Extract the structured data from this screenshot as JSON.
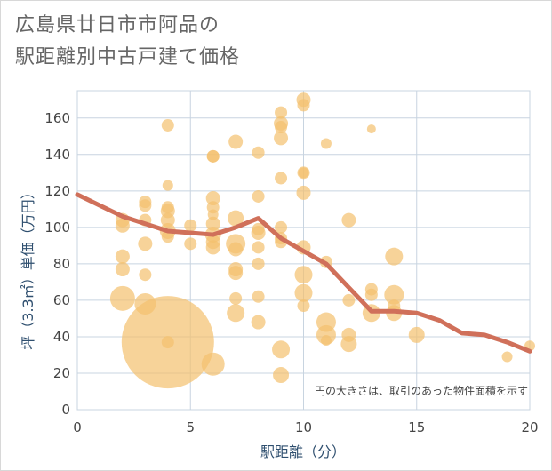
{
  "title_line1": "広島県廿日市市阿品の",
  "title_line2": "駅距離別中古戸建て価格",
  "chart_data": {
    "type": "scatter",
    "title": "広島県廿日市市阿品の駅距離別中古戸建て価格",
    "xlabel": "駅距離（分）",
    "ylabel": "坪（3.3㎡）単価（万円）",
    "xlim": [
      0,
      20
    ],
    "ylim": [
      0,
      175
    ],
    "xticks": [
      "0",
      "5",
      "10",
      "15",
      "20"
    ],
    "yticks": [
      "0",
      "20",
      "40",
      "60",
      "80",
      "100",
      "120",
      "140",
      "160"
    ],
    "note": "円の大きさは、取引のあった物件面積を示す",
    "bubble_color": "#f3c06d",
    "line_color": "#d0705a",
    "points": [
      {
        "x": 2,
        "y": 104,
        "s": 8
      },
      {
        "x": 2,
        "y": 101,
        "s": 8
      },
      {
        "x": 2,
        "y": 84,
        "s": 8
      },
      {
        "x": 2,
        "y": 77,
        "s": 8
      },
      {
        "x": 2,
        "y": 61,
        "s": 14
      },
      {
        "x": 3,
        "y": 114,
        "s": 7
      },
      {
        "x": 3,
        "y": 112,
        "s": 7
      },
      {
        "x": 3,
        "y": 104,
        "s": 7
      },
      {
        "x": 3,
        "y": 91,
        "s": 8
      },
      {
        "x": 3,
        "y": 74,
        "s": 7
      },
      {
        "x": 3,
        "y": 58,
        "s": 12
      },
      {
        "x": 4,
        "y": 156,
        "s": 7
      },
      {
        "x": 4,
        "y": 123,
        "s": 6
      },
      {
        "x": 4,
        "y": 111,
        "s": 7
      },
      {
        "x": 4,
        "y": 109,
        "s": 8
      },
      {
        "x": 4,
        "y": 104,
        "s": 8
      },
      {
        "x": 4,
        "y": 98,
        "s": 9
      },
      {
        "x": 4,
        "y": 95,
        "s": 7
      },
      {
        "x": 4,
        "y": 37,
        "s": 52
      },
      {
        "x": 4,
        "y": 37,
        "s": 7
      },
      {
        "x": 5,
        "y": 101,
        "s": 7
      },
      {
        "x": 5,
        "y": 91,
        "s": 7
      },
      {
        "x": 6,
        "y": 139,
        "s": 7
      },
      {
        "x": 6,
        "y": 139,
        "s": 7
      },
      {
        "x": 6,
        "y": 116,
        "s": 8
      },
      {
        "x": 6,
        "y": 111,
        "s": 7
      },
      {
        "x": 6,
        "y": 107,
        "s": 6
      },
      {
        "x": 6,
        "y": 102,
        "s": 8
      },
      {
        "x": 6,
        "y": 96,
        "s": 9
      },
      {
        "x": 6,
        "y": 92,
        "s": 8
      },
      {
        "x": 6,
        "y": 89,
        "s": 8
      },
      {
        "x": 6,
        "y": 25,
        "s": 13
      },
      {
        "x": 7,
        "y": 147,
        "s": 8
      },
      {
        "x": 7,
        "y": 105,
        "s": 9
      },
      {
        "x": 7,
        "y": 91,
        "s": 11
      },
      {
        "x": 7,
        "y": 88,
        "s": 8
      },
      {
        "x": 7,
        "y": 77,
        "s": 8
      },
      {
        "x": 7,
        "y": 75,
        "s": 8
      },
      {
        "x": 7,
        "y": 61,
        "s": 7
      },
      {
        "x": 7,
        "y": 53,
        "s": 10
      },
      {
        "x": 8,
        "y": 141,
        "s": 7
      },
      {
        "x": 8,
        "y": 117,
        "s": 7
      },
      {
        "x": 8,
        "y": 99,
        "s": 7
      },
      {
        "x": 8,
        "y": 97,
        "s": 8
      },
      {
        "x": 8,
        "y": 89,
        "s": 7
      },
      {
        "x": 8,
        "y": 80,
        "s": 7
      },
      {
        "x": 8,
        "y": 62,
        "s": 7
      },
      {
        "x": 8,
        "y": 48,
        "s": 8
      },
      {
        "x": 9,
        "y": 163,
        "s": 7
      },
      {
        "x": 9,
        "y": 157,
        "s": 8
      },
      {
        "x": 9,
        "y": 155,
        "s": 7
      },
      {
        "x": 9,
        "y": 149,
        "s": 8
      },
      {
        "x": 9,
        "y": 127,
        "s": 7
      },
      {
        "x": 9,
        "y": 100,
        "s": 7
      },
      {
        "x": 9,
        "y": 94,
        "s": 7
      },
      {
        "x": 9,
        "y": 92,
        "s": 7
      },
      {
        "x": 9,
        "y": 33,
        "s": 10
      },
      {
        "x": 9,
        "y": 19,
        "s": 9
      },
      {
        "x": 10,
        "y": 170,
        "s": 8
      },
      {
        "x": 10,
        "y": 167,
        "s": 7
      },
      {
        "x": 10,
        "y": 130,
        "s": 7
      },
      {
        "x": 10,
        "y": 130,
        "s": 6
      },
      {
        "x": 10,
        "y": 119,
        "s": 8
      },
      {
        "x": 10,
        "y": 89,
        "s": 8
      },
      {
        "x": 10,
        "y": 74,
        "s": 10
      },
      {
        "x": 10,
        "y": 64,
        "s": 10
      },
      {
        "x": 10,
        "y": 57,
        "s": 7
      },
      {
        "x": 11,
        "y": 146,
        "s": 6
      },
      {
        "x": 11,
        "y": 81,
        "s": 7
      },
      {
        "x": 11,
        "y": 48,
        "s": 11
      },
      {
        "x": 11,
        "y": 41,
        "s": 11
      },
      {
        "x": 11,
        "y": 38,
        "s": 6
      },
      {
        "x": 12,
        "y": 104,
        "s": 8
      },
      {
        "x": 12,
        "y": 60,
        "s": 7
      },
      {
        "x": 12,
        "y": 41,
        "s": 8
      },
      {
        "x": 12,
        "y": 36,
        "s": 9
      },
      {
        "x": 13,
        "y": 154,
        "s": 5
      },
      {
        "x": 13,
        "y": 66,
        "s": 7
      },
      {
        "x": 13,
        "y": 63,
        "s": 7
      },
      {
        "x": 13,
        "y": 53,
        "s": 10
      },
      {
        "x": 14,
        "y": 84,
        "s": 10
      },
      {
        "x": 14,
        "y": 63,
        "s": 11
      },
      {
        "x": 14,
        "y": 57,
        "s": 7
      },
      {
        "x": 14,
        "y": 53,
        "s": 9
      },
      {
        "x": 15,
        "y": 41,
        "s": 9
      },
      {
        "x": 19,
        "y": 29,
        "s": 6
      },
      {
        "x": 20,
        "y": 35,
        "s": 6
      }
    ],
    "line": {
      "x": [
        0,
        1,
        2,
        3,
        4,
        5,
        6,
        7,
        8,
        9,
        10,
        11,
        12,
        13,
        14,
        15,
        16,
        17,
        18,
        19,
        20
      ],
      "y": [
        118,
        112,
        106,
        102,
        98,
        97,
        96,
        100,
        105,
        94,
        87,
        80,
        67,
        54,
        54,
        53,
        49,
        42,
        41,
        37,
        32
      ]
    }
  }
}
